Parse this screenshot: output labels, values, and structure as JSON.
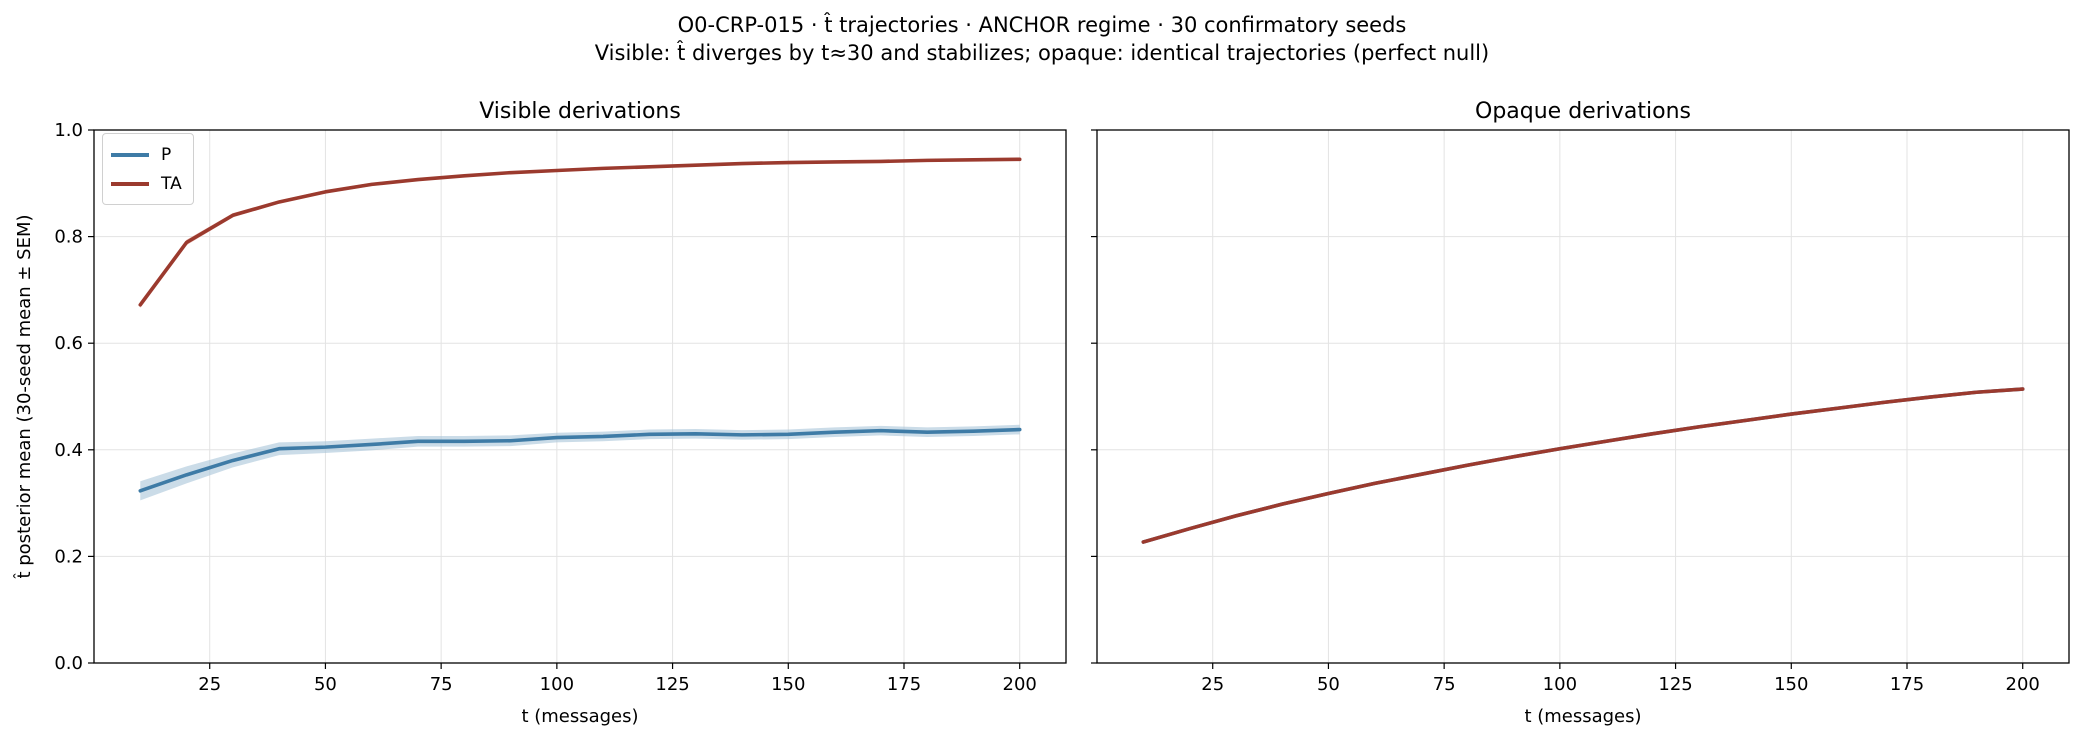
{
  "figure": {
    "title_line1": "O0-CRP-015 · t̂ trajectories · ANCHOR regime · 30 confirmatory seeds",
    "title_line2": "Visible: t̂ diverges by t≈30 and stabilizes; opaque: identical trajectories (perfect null)"
  },
  "colors": {
    "P": "#3e7ba6",
    "TA": "#9b3a2e",
    "P_band": "#a9c4d8",
    "TA_band": "#e39a8e",
    "grid": "#e3e3e3"
  },
  "chart_data": [
    {
      "type": "line",
      "title": "Visible derivations",
      "xlabel": "t (messages)",
      "ylabel": "t̂ posterior mean (30-seed mean ± SEM)",
      "xlim": [
        0,
        210
      ],
      "ylim": [
        0.0,
        1.0
      ],
      "xticks": [
        25,
        50,
        75,
        100,
        125,
        150,
        175,
        200
      ],
      "yticks": [
        0.0,
        0.2,
        0.4,
        0.6,
        0.8,
        1.0
      ],
      "ytick_labels": [
        "0.0",
        "0.2",
        "0.4",
        "0.6",
        "0.8",
        "1.0"
      ],
      "grid": true,
      "legend_position": "top-left",
      "x": [
        10,
        20,
        30,
        40,
        50,
        60,
        70,
        80,
        90,
        100,
        110,
        120,
        130,
        140,
        150,
        160,
        170,
        180,
        190,
        200
      ],
      "series": [
        {
          "name": "P",
          "values": [
            0.323,
            0.353,
            0.38,
            0.402,
            0.405,
            0.41,
            0.416,
            0.416,
            0.417,
            0.423,
            0.425,
            0.429,
            0.43,
            0.428,
            0.429,
            0.433,
            0.436,
            0.433,
            0.435,
            0.438
          ],
          "sem": [
            0.018,
            0.016,
            0.013,
            0.012,
            0.011,
            0.011,
            0.01,
            0.01,
            0.01,
            0.009,
            0.009,
            0.009,
            0.009,
            0.009,
            0.009,
            0.009,
            0.009,
            0.009,
            0.009,
            0.009
          ]
        },
        {
          "name": "TA",
          "values": [
            0.672,
            0.789,
            0.84,
            0.865,
            0.884,
            0.898,
            0.907,
            0.914,
            0.92,
            0.924,
            0.928,
            0.931,
            0.934,
            0.937,
            0.939,
            0.94,
            0.941,
            0.943,
            0.944,
            0.945
          ],
          "sem": [
            0.006,
            0.005,
            0.004,
            0.003,
            0.003,
            0.003,
            0.002,
            0.002,
            0.002,
            0.002,
            0.002,
            0.002,
            0.002,
            0.002,
            0.002,
            0.002,
            0.002,
            0.002,
            0.002,
            0.002
          ]
        }
      ]
    },
    {
      "type": "line",
      "title": "Opaque derivations",
      "xlabel": "t (messages)",
      "xlim": [
        0,
        210
      ],
      "ylim": [
        0.0,
        1.0
      ],
      "xticks": [
        25,
        50,
        75,
        100,
        125,
        150,
        175,
        200
      ],
      "grid": true,
      "x": [
        10,
        20,
        30,
        40,
        50,
        60,
        70,
        80,
        90,
        100,
        110,
        120,
        130,
        140,
        150,
        160,
        170,
        180,
        190,
        200
      ],
      "series": [
        {
          "name": "P",
          "values": [
            0.227,
            0.252,
            0.276,
            0.298,
            0.318,
            0.337,
            0.354,
            0.371,
            0.387,
            0.402,
            0.416,
            0.43,
            0.443,
            0.455,
            0.467,
            0.478,
            0.489,
            0.499,
            0.508,
            0.514
          ]
        },
        {
          "name": "TA",
          "values": [
            0.227,
            0.252,
            0.276,
            0.298,
            0.318,
            0.337,
            0.354,
            0.371,
            0.387,
            0.402,
            0.416,
            0.43,
            0.443,
            0.455,
            0.467,
            0.478,
            0.489,
            0.499,
            0.508,
            0.514
          ]
        }
      ]
    }
  ]
}
